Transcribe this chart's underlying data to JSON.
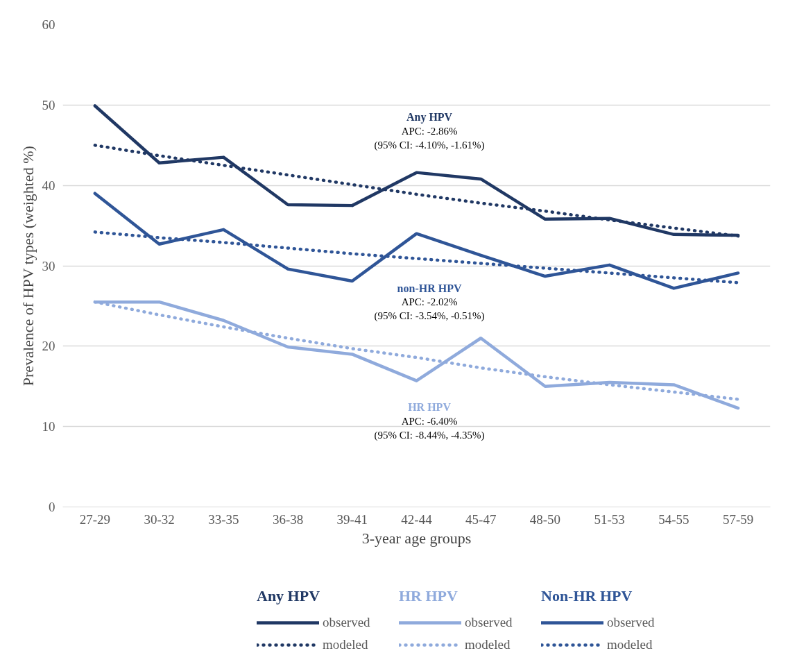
{
  "chart_data": {
    "type": "line",
    "xlabel": "3-year age groups",
    "ylabel": "Prevalence of HPV types (weighted %)",
    "categories": [
      "27-29",
      "30-32",
      "33-35",
      "36-38",
      "39-41",
      "42-44",
      "45-47",
      "48-50",
      "51-53",
      "54-55",
      "57-59"
    ],
    "ylim": [
      0,
      60
    ],
    "yticks": [
      0,
      10,
      20,
      30,
      40,
      50,
      60
    ],
    "grid": "y",
    "legend": "bottom",
    "marker": "none",
    "series": [
      {
        "name": "observed",
        "color": "#203864",
        "line_style": "solid",
        "values": [
          49.9,
          42.8,
          43.5,
          37.6,
          37.5,
          41.6,
          40.8,
          35.8,
          35.9,
          33.9,
          33.8
        ]
      },
      {
        "name": "modeled",
        "color": "#203864",
        "line_style": "dotted",
        "values": [
          45.0,
          43.7,
          42.5,
          41.3,
          40.1,
          38.9,
          37.8,
          36.8,
          35.7,
          34.7,
          33.7
        ]
      },
      {
        "name": "observed",
        "color": "#8faadc",
        "line_style": "solid",
        "values": [
          25.5,
          25.5,
          23.2,
          19.9,
          19.0,
          15.7,
          21.0,
          15.0,
          15.5,
          15.2,
          12.3
        ]
      },
      {
        "name": "modeled",
        "color": "#8faadc",
        "line_style": "dotted",
        "values": [
          25.5,
          23.9,
          22.4,
          21.0,
          19.7,
          18.6,
          17.3,
          16.2,
          15.2,
          14.3,
          13.4
        ]
      },
      {
        "name": "observed",
        "color": "#2f5597",
        "line_style": "solid",
        "values": [
          39.0,
          32.7,
          34.5,
          29.6,
          28.1,
          34.0,
          31.3,
          28.7,
          30.1,
          27.2,
          29.1
        ]
      },
      {
        "name": "modeled",
        "color": "#2f5597",
        "line_style": "dotted",
        "values": [
          34.2,
          33.5,
          32.9,
          32.2,
          31.5,
          30.9,
          30.3,
          29.7,
          29.1,
          28.5,
          27.9
        ]
      }
    ],
    "annotations": [
      "Any HPV\nAPC: -2.86%\n(95% CI: -4.10%, -1.61%)",
      "non-HR HPV\nAPC: -2.02%\n(95% CI: -3.54%, -0.51%)",
      "HR HPV\nAPC: -6.40%\n(95% CI: -8.44%, -4.35%)",
      "Any HPV",
      "HR HPV",
      "Non-HR HPV"
    ]
  }
}
